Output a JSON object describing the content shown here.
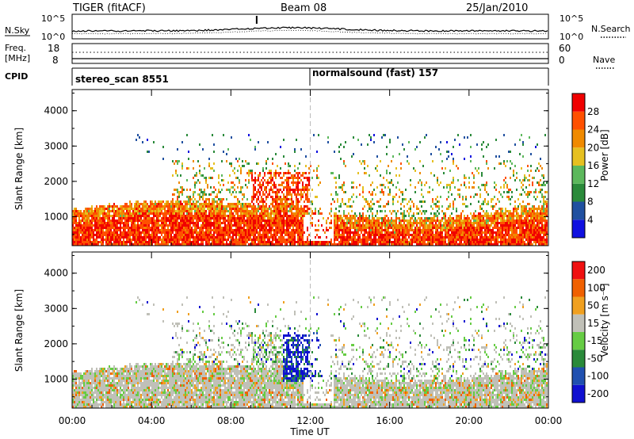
{
  "header": {
    "station": "TIGER (fitACF)",
    "beam": "Beam 08",
    "date": "25/Jan/2010"
  },
  "strips": {
    "left_label_top": "N.Sky",
    "left_label_freq_1": "Freq.",
    "left_label_freq_2": "[MHz]",
    "left_label_cpid": "CPID",
    "right_label_top": "N.Search",
    "right_label_nave": "Nave",
    "nsky_ticks": [
      "10^5",
      "10^0"
    ],
    "nsearch_ticks": [
      "10^5",
      "10^0"
    ],
    "freq_ticks": [
      "18",
      "8"
    ],
    "nave_ticks": [
      "60",
      "0"
    ]
  },
  "cpid": {
    "left_mode": "stereo_scan 8551",
    "right_mode": "normalsound (fast) 157"
  },
  "chart_data": [
    {
      "type": "heatmap",
      "parameter": "Power",
      "ylabel": "Slant Range [km]",
      "ylim": [
        180,
        4600
      ],
      "yticks": [
        "1000",
        "2000",
        "3000",
        "4000"
      ],
      "colorbar_label": "Power [dB]",
      "colorbar_ticks": [
        "28",
        "24",
        "20",
        "16",
        "12",
        "8",
        "4"
      ],
      "colorbar_colors": [
        "#1010e0",
        "#2050a0",
        "#2a8a3a",
        "#5cb85c",
        "#e6c020",
        "#f08a00",
        "#ff5000",
        "#f00000"
      ]
    },
    {
      "type": "heatmap",
      "parameter": "Velocity",
      "ylabel": "Slant Range [km]",
      "ylim": [
        180,
        4600
      ],
      "yticks": [
        "1000",
        "2000",
        "3000",
        "4000"
      ],
      "colorbar_label": "Velocity [m s⁻¹]",
      "colorbar_ticks": [
        "200",
        "100",
        "50",
        "15",
        "-15",
        "-50",
        "-100",
        "-200"
      ],
      "colorbar_colors": [
        "#1010d0",
        "#2050b0",
        "#2a8a3a",
        "#66cc44",
        "#c0c0b8",
        "#f0a020",
        "#f06000",
        "#f01010"
      ]
    }
  ],
  "time_axis": {
    "xlabel": "Time UT",
    "xticks": [
      "00:00",
      "04:00",
      "08:00",
      "12:00",
      "16:00",
      "20:00",
      "00:00"
    ],
    "xlim_hours": [
      0,
      24
    ]
  }
}
